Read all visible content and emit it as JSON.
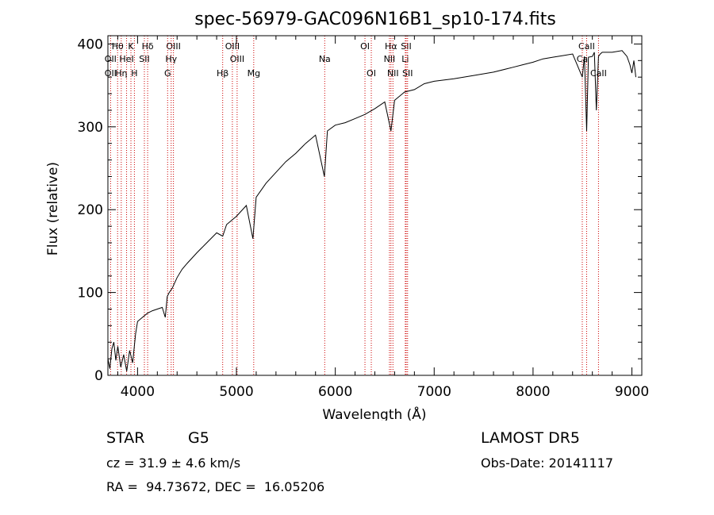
{
  "chart_data": {
    "type": "line",
    "title": "spec-56979-GAC096N16B1_sp10-174.fits",
    "xlabel": "Wavelength (Å)",
    "ylabel": "Flux (relative)",
    "xlim": [
      3700,
      9100
    ],
    "ylim": [
      0,
      410
    ],
    "xticks": [
      4000,
      5000,
      6000,
      7000,
      8000,
      9000
    ],
    "yticks": [
      0,
      100,
      200,
      300,
      400
    ],
    "grid": false,
    "series": [
      {
        "x": [
          3700,
          3720,
          3740,
          3760,
          3780,
          3800,
          3830,
          3860,
          3890,
          3920,
          3950,
          3980,
          4000,
          4050,
          4100,
          4150,
          4200,
          4250,
          4280,
          4300,
          4320,
          4350,
          4400,
          4450,
          4500,
          4600,
          4700,
          4800,
          4861,
          4900,
          5000,
          5100,
          5167,
          5200,
          5300,
          5400,
          5500,
          5600,
          5700,
          5800,
          5890,
          5920,
          6000,
          6100,
          6200,
          6300,
          6400,
          6500,
          6563,
          6600,
          6700,
          6800,
          6900,
          7000,
          7200,
          7400,
          7600,
          7800,
          7900,
          8000,
          8100,
          8200,
          8300,
          8400,
          8498,
          8520,
          8542,
          8560,
          8600,
          8620,
          8640,
          8662,
          8680,
          8700,
          8800,
          8900,
          8950,
          8980,
          9000,
          9020,
          9040
        ],
        "y": [
          20,
          8,
          32,
          40,
          18,
          35,
          10,
          25,
          5,
          30,
          15,
          50,
          65,
          70,
          75,
          78,
          80,
          82,
          70,
          95,
          100,
          105,
          118,
          128,
          135,
          148,
          160,
          172,
          168,
          182,
          192,
          205,
          165,
          215,
          232,
          245,
          258,
          268,
          280,
          290,
          240,
          295,
          302,
          305,
          310,
          315,
          322,
          330,
          295,
          332,
          342,
          345,
          352,
          355,
          358,
          362,
          366,
          372,
          375,
          378,
          382,
          384,
          386,
          388,
          360,
          385,
          295,
          384,
          385,
          390,
          320,
          385,
          388,
          390,
          390,
          392,
          385,
          375,
          365,
          380,
          360
        ]
      }
    ],
    "line_markers": [
      {
        "label": "Hθ",
        "x": 3798,
        "row": 1
      },
      {
        "label": "K",
        "x": 3933,
        "row": 1
      },
      {
        "label": "Hδ",
        "x": 4102,
        "row": 1
      },
      {
        "label": "OIII",
        "x": 4363,
        "row": 1
      },
      {
        "label": "OIII",
        "x": 4959,
        "row": 1
      },
      {
        "label": "OI",
        "x": 6300,
        "row": 1
      },
      {
        "label": "Hα",
        "x": 6563,
        "row": 1
      },
      {
        "label": "SII",
        "x": 6717,
        "row": 1
      },
      {
        "label": "CaII",
        "x": 8542,
        "row": 1
      },
      {
        "label": "OII",
        "x": 3727,
        "row": 2
      },
      {
        "label": "HeI",
        "x": 3889,
        "row": 2
      },
      {
        "label": "SII",
        "x": 4069,
        "row": 2
      },
      {
        "label": "Hγ",
        "x": 4340,
        "row": 2
      },
      {
        "label": "OIII",
        "x": 5007,
        "row": 2
      },
      {
        "label": "Na",
        "x": 5893,
        "row": 2
      },
      {
        "label": "NII",
        "x": 6548,
        "row": 2
      },
      {
        "label": "Li",
        "x": 6708,
        "row": 2
      },
      {
        "label": "Ca",
        "x": 8498,
        "row": 2
      },
      {
        "label": "OII",
        "x": 3727,
        "row": 3
      },
      {
        "label": "Hη",
        "x": 3835,
        "row": 3
      },
      {
        "label": "H",
        "x": 3968,
        "row": 3
      },
      {
        "label": "G",
        "x": 4304,
        "row": 3
      },
      {
        "label": "Hβ",
        "x": 4861,
        "row": 3
      },
      {
        "label": "Mg",
        "x": 5175,
        "row": 3
      },
      {
        "label": "OI",
        "x": 6364,
        "row": 3
      },
      {
        "label": "NII",
        "x": 6583,
        "row": 3
      },
      {
        "label": "SII",
        "x": 6731,
        "row": 3
      },
      {
        "label": "CaII",
        "x": 8662,
        "row": 3
      }
    ],
    "colors": {
      "spectrum": "#000000",
      "line_markers": "#cc0000",
      "axes": "#000000"
    }
  },
  "info": {
    "object_class": "STAR",
    "subclass": "G5",
    "velocity": "cz = 31.9 ± 4.6 km/s",
    "coords": "RA =  94.73672, DEC =  16.05206",
    "survey": "LAMOST DR5",
    "obs_date": "Obs-Date: 20141117"
  }
}
